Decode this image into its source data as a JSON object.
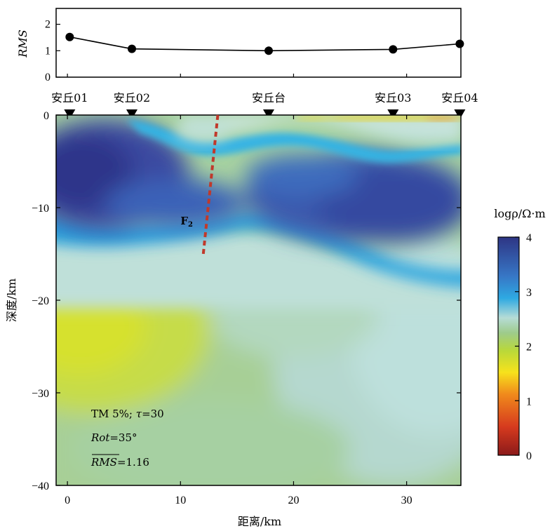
{
  "chart_data": [
    {
      "type": "line",
      "ylabel": "RMS",
      "ylim": [
        0,
        2.6
      ],
      "yticks": [
        "0",
        "1",
        "2"
      ],
      "x": [
        0.2,
        5.7,
        17.8,
        28.8,
        34.7
      ],
      "values": [
        1.52,
        1.07,
        1.0,
        1.05,
        1.26
      ]
    },
    {
      "type": "heatmap",
      "title": "",
      "xlabel": "距离/km",
      "ylabel": "深度/km",
      "xlim": [
        -1,
        34.8
      ],
      "ylim": [
        -40,
        0
      ],
      "xticks": [
        "0",
        "10",
        "20",
        "30"
      ],
      "yticks": [
        "0",
        "−10",
        "−20",
        "−30",
        "−40"
      ],
      "stations": [
        {
          "name": "安丘01",
          "x": 0.2
        },
        {
          "name": "安丘02",
          "x": 5.7
        },
        {
          "name": "安丘台",
          "x": 17.8
        },
        {
          "name": "安丘03",
          "x": 28.8
        },
        {
          "name": "安丘04",
          "x": 34.7
        }
      ],
      "fault": {
        "label": "F",
        "label_sub": "2",
        "top": [
          13.3,
          0
        ],
        "bottom": [
          12.0,
          -15.2
        ],
        "color": "#c0392b"
      },
      "annotations": {
        "line1_a": "TM 5%; ",
        "line1_tau": "τ",
        "line1_b": "=30",
        "line2_italic": "Rot",
        "line2_rest": "=35°",
        "line3_italic": "RMS",
        "line3_rest": "=1.16"
      },
      "colorbar": {
        "label": "logρ/Ω·m",
        "range": [
          0,
          4
        ],
        "ticks": [
          "0",
          "1",
          "2",
          "3",
          "4"
        ]
      }
    }
  ]
}
